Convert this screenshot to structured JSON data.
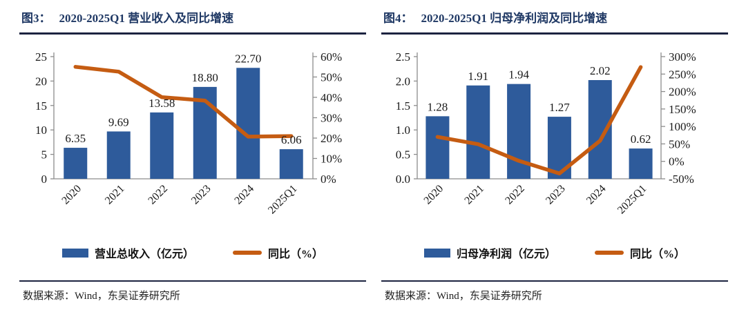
{
  "theme": {
    "bg": "#ffffff",
    "title_color": "#1f3864",
    "rule_color": "#1c2340",
    "axis_color": "#8c8c8c",
    "text_color": "#1a1a1a"
  },
  "figures": [
    {
      "label": "图3：",
      "title": "2020-2025Q1 营业收入及同比增速",
      "source": "数据来源：Wind，东吴证券研究所",
      "legend": [
        {
          "kind": "bar",
          "label": "营业总收入（亿元）"
        },
        {
          "kind": "line",
          "label": "同比（%）"
        }
      ],
      "colors": {
        "bar": "#2e5b9b",
        "line": "#c55c12"
      },
      "chart_data": {
        "type": "bar",
        "subtype": "bar+line combo, dual axis",
        "categories": [
          "2020",
          "2021",
          "2022",
          "2023",
          "2024",
          "2025Q1"
        ],
        "series": [
          {
            "name": "营业总收入（亿元）",
            "type": "bar",
            "axis": "left",
            "values": [
              6.35,
              9.69,
              13.58,
              18.8,
              22.7,
              6.06
            ],
            "labels": [
              "6.35",
              "9.69",
              "13.58",
              "18.80",
              "22.70",
              "6.06"
            ]
          },
          {
            "name": "同比（%）",
            "type": "line",
            "axis": "right",
            "values": [
              55.0,
              52.6,
              40.1,
              38.4,
              20.7,
              21.0
            ]
          }
        ],
        "left_axis": {
          "range": [
            0,
            25
          ],
          "tick_labels_top_to_bottom": [
            "25",
            "20",
            "15",
            "10",
            "5",
            "0"
          ]
        },
        "right_axis": {
          "range": [
            0,
            60
          ],
          "tick_labels_top_to_bottom": [
            "60%",
            "50%",
            "40%",
            "30%",
            "20%",
            "10%",
            "0%"
          ]
        },
        "grid": false,
        "legend_position": "bottom"
      }
    },
    {
      "label": "图4：",
      "title": "2020-2025Q1 归母净利润及同比增速",
      "source": "数据来源：Wind，东吴证券研究所",
      "legend": [
        {
          "kind": "bar",
          "label": "归母净利润（亿元）"
        },
        {
          "kind": "line",
          "label": "同比（%）"
        }
      ],
      "colors": {
        "bar": "#2e5b9b",
        "line": "#c55c12"
      },
      "chart_data": {
        "type": "bar",
        "subtype": "bar+line combo, dual axis",
        "categories": [
          "2020",
          "2021",
          "2022",
          "2023",
          "2024",
          "2025Q1"
        ],
        "series": [
          {
            "name": "归母净利润（亿元）",
            "type": "bar",
            "axis": "left",
            "values": [
              1.28,
              1.91,
              1.94,
              1.27,
              2.02,
              0.62
            ],
            "labels": [
              "1.28",
              "1.91",
              "1.94",
              "1.27",
              "2.02",
              "0.62"
            ]
          },
          {
            "name": "同比（%）",
            "type": "line",
            "axis": "right",
            "values": [
              70.0,
              49.2,
              1.6,
              -34.5,
              59.1,
              270.0
            ]
          }
        ],
        "left_axis": {
          "range": [
            0,
            2.5
          ],
          "tick_labels_top_to_bottom": [
            "2.5",
            "2.0",
            "1.5",
            "1.0",
            "0.5",
            "0.0"
          ]
        },
        "right_axis": {
          "range": [
            -50,
            300
          ],
          "tick_labels_top_to_bottom": [
            "300%",
            "250%",
            "200%",
            "150%",
            "100%",
            "50%",
            "0%",
            "-50%"
          ]
        },
        "grid": false,
        "legend_position": "bottom"
      }
    }
  ]
}
